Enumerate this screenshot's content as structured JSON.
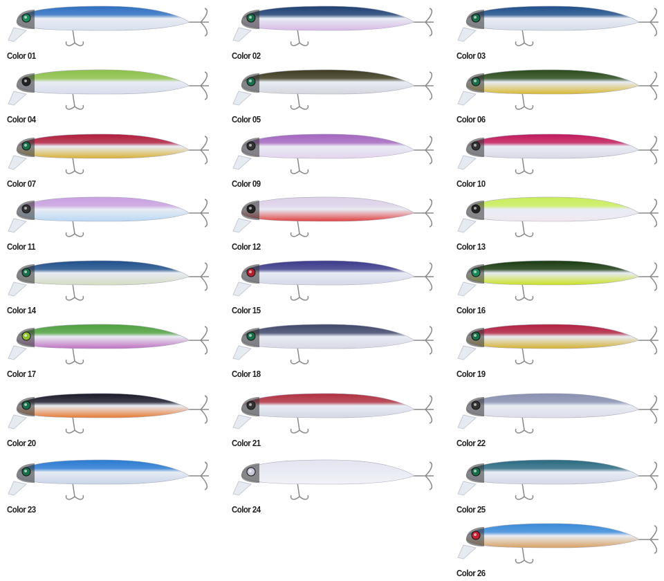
{
  "lures": [
    {
      "label": "Color 01",
      "top": "#2f6fc0",
      "belly": "#d8e0ee",
      "eye": "#1c8a5a"
    },
    {
      "label": "Color 02",
      "top": "#1d3f72",
      "belly": "#d9b8e6",
      "eye": "#1a6e4a"
    },
    {
      "label": "Color 03",
      "top": "#1f4f8a",
      "belly": "#d4dce8",
      "eye": "#1a6e4a"
    },
    {
      "label": "Color 04",
      "top": "#8cc04a",
      "belly": "#d8dcec",
      "eye": "#222222"
    },
    {
      "label": "Color 05",
      "top": "#3d3a20",
      "belly": "#d4d6dc",
      "eye": "#1a6e4a"
    },
    {
      "label": "Color 06",
      "top": "#2a4a1a",
      "belly": "#d8b830",
      "eye": "#1a6e4a"
    },
    {
      "label": "Color 07",
      "top": "#b01e3c",
      "belly": "#d9b034",
      "eye": "#1a6e4a"
    },
    {
      "label": "Color 09",
      "top": "#a466c0",
      "belly": "#e4d4ee",
      "eye": "#333333"
    },
    {
      "label": "Color 10",
      "top": "#c01a5a",
      "belly": "#d8d8e4",
      "eye": "#333333"
    },
    {
      "label": "Color 11",
      "top": "#c8a0e0",
      "belly": "#b8d8f4",
      "eye": "#333333"
    },
    {
      "label": "Color 12",
      "top": "#dcd0e8",
      "belly": "#e04040",
      "eye": "#222222"
    },
    {
      "label": "Color 13",
      "top": "#c8ec5a",
      "belly": "#f0e8f0",
      "eye": "#222222"
    },
    {
      "label": "Color 14",
      "top": "#1f4f8a",
      "belly": "#d4dcc0",
      "eye": "#1a6e4a"
    },
    {
      "label": "Color 15",
      "top": "#3a3a8a",
      "belly": "#d4d8e8",
      "eye": "#b02030"
    },
    {
      "label": "Color 16",
      "top": "#1a3a10",
      "belly": "#c8e020",
      "eye": "#1a8a5a"
    },
    {
      "label": "Color 17",
      "top": "#50a040",
      "belly": "#c070c0",
      "eye": "#90c030"
    },
    {
      "label": "Color 18",
      "top": "#40486a",
      "belly": "#d8d8e4",
      "eye": "#1a6e4a"
    },
    {
      "label": "Color 19",
      "top": "#b02040",
      "belly": "#d4b030",
      "eye": "#1a6e4a"
    },
    {
      "label": "Color 20",
      "top": "#1a1a2a",
      "belly": "#e87a30",
      "eye": "#1a6e4a"
    },
    {
      "label": "Color 21",
      "top": "#b03040",
      "belly": "#d4d8e4",
      "eye": "#333333"
    },
    {
      "label": "Color 22",
      "top": "#8890b0",
      "belly": "#dcdce8",
      "eye": "#333333"
    },
    {
      "label": "Color 23",
      "top": "#2a7ad0",
      "belly": "#c8d4e8",
      "eye": "#1a6e4a"
    },
    {
      "label": "Color 24",
      "top": "#e4e4f0",
      "belly": "#f2f2f8",
      "eye": "#c8c8d8"
    },
    {
      "label": "Color 25",
      "top": "#2a6a80",
      "belly": "#d4d8e8",
      "eye": "#1a6e4a"
    },
    {
      "label": "Color 26",
      "top": "#3a8ad8",
      "belly": "#d8a060",
      "eye": "#c02030"
    }
  ]
}
